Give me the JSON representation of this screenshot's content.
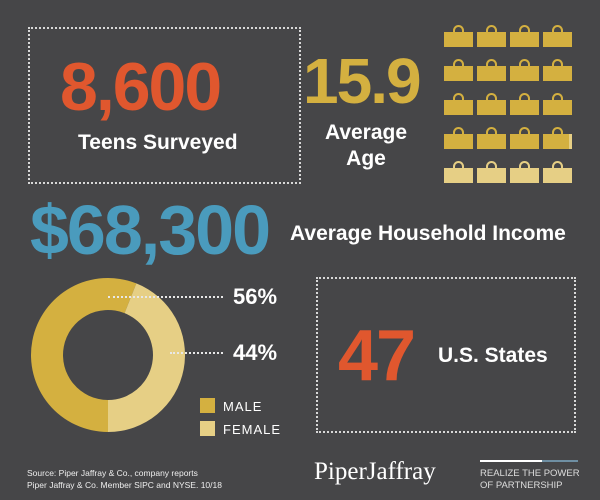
{
  "colors": {
    "background": "#464648",
    "orange": "#e0572e",
    "gold": "#d4b040",
    "light_gold": "#e6cf85",
    "blue": "#4a9bbd"
  },
  "stats": {
    "teens": {
      "value": "8,600",
      "label": "Teens Surveyed"
    },
    "age": {
      "value": "15.9",
      "label_line1": "Average",
      "label_line2": "Age",
      "bags_total": 20,
      "bags_filled": 15.9
    },
    "income": {
      "value": "$68,300",
      "label": "Average Household Income"
    },
    "states": {
      "value": "47",
      "label": "U.S. States"
    }
  },
  "chart_data": {
    "type": "pie",
    "donut": true,
    "categories": [
      "MALE",
      "FEMALE"
    ],
    "values": [
      56,
      44
    ],
    "value_labels": [
      "56%",
      "44%"
    ],
    "legend": "bottom-right"
  },
  "footer": {
    "source_line1": "Source: Piper Jaffray & Co., company reports",
    "source_line2": "Piper Jaffray & Co. Member SIPC and NYSE. 10/18",
    "logo": "PiperJaffray",
    "tagline_line1": "REALIZE THE POWER",
    "tagline_line2": "OF PARTNERSHIP"
  }
}
